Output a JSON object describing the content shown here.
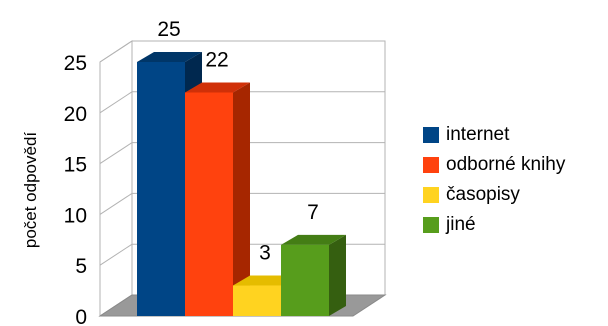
{
  "chart_data": {
    "type": "bar",
    "style": "3d",
    "categories": [
      "internet",
      "odborné knihy",
      "časopisy",
      "jiné"
    ],
    "values": [
      25,
      22,
      3,
      7
    ],
    "data_labels": [
      "25",
      "22",
      "3",
      "7"
    ],
    "title": "",
    "xlabel": "",
    "ylabel": "počet odpovědí",
    "ylim": [
      0,
      25
    ],
    "yticks": [
      "0",
      "5",
      "10",
      "15",
      "20",
      "25"
    ],
    "grid": true,
    "legend_position": "right",
    "colors": [
      "#004586",
      "#ff420e",
      "#ffd320",
      "#579d1c"
    ],
    "side_colors": [
      "#00284f",
      "#a62600",
      "#b09100",
      "#355f10"
    ],
    "top_colors": [
      "#003668",
      "#d03008",
      "#e5bc00",
      "#447d15"
    ]
  }
}
